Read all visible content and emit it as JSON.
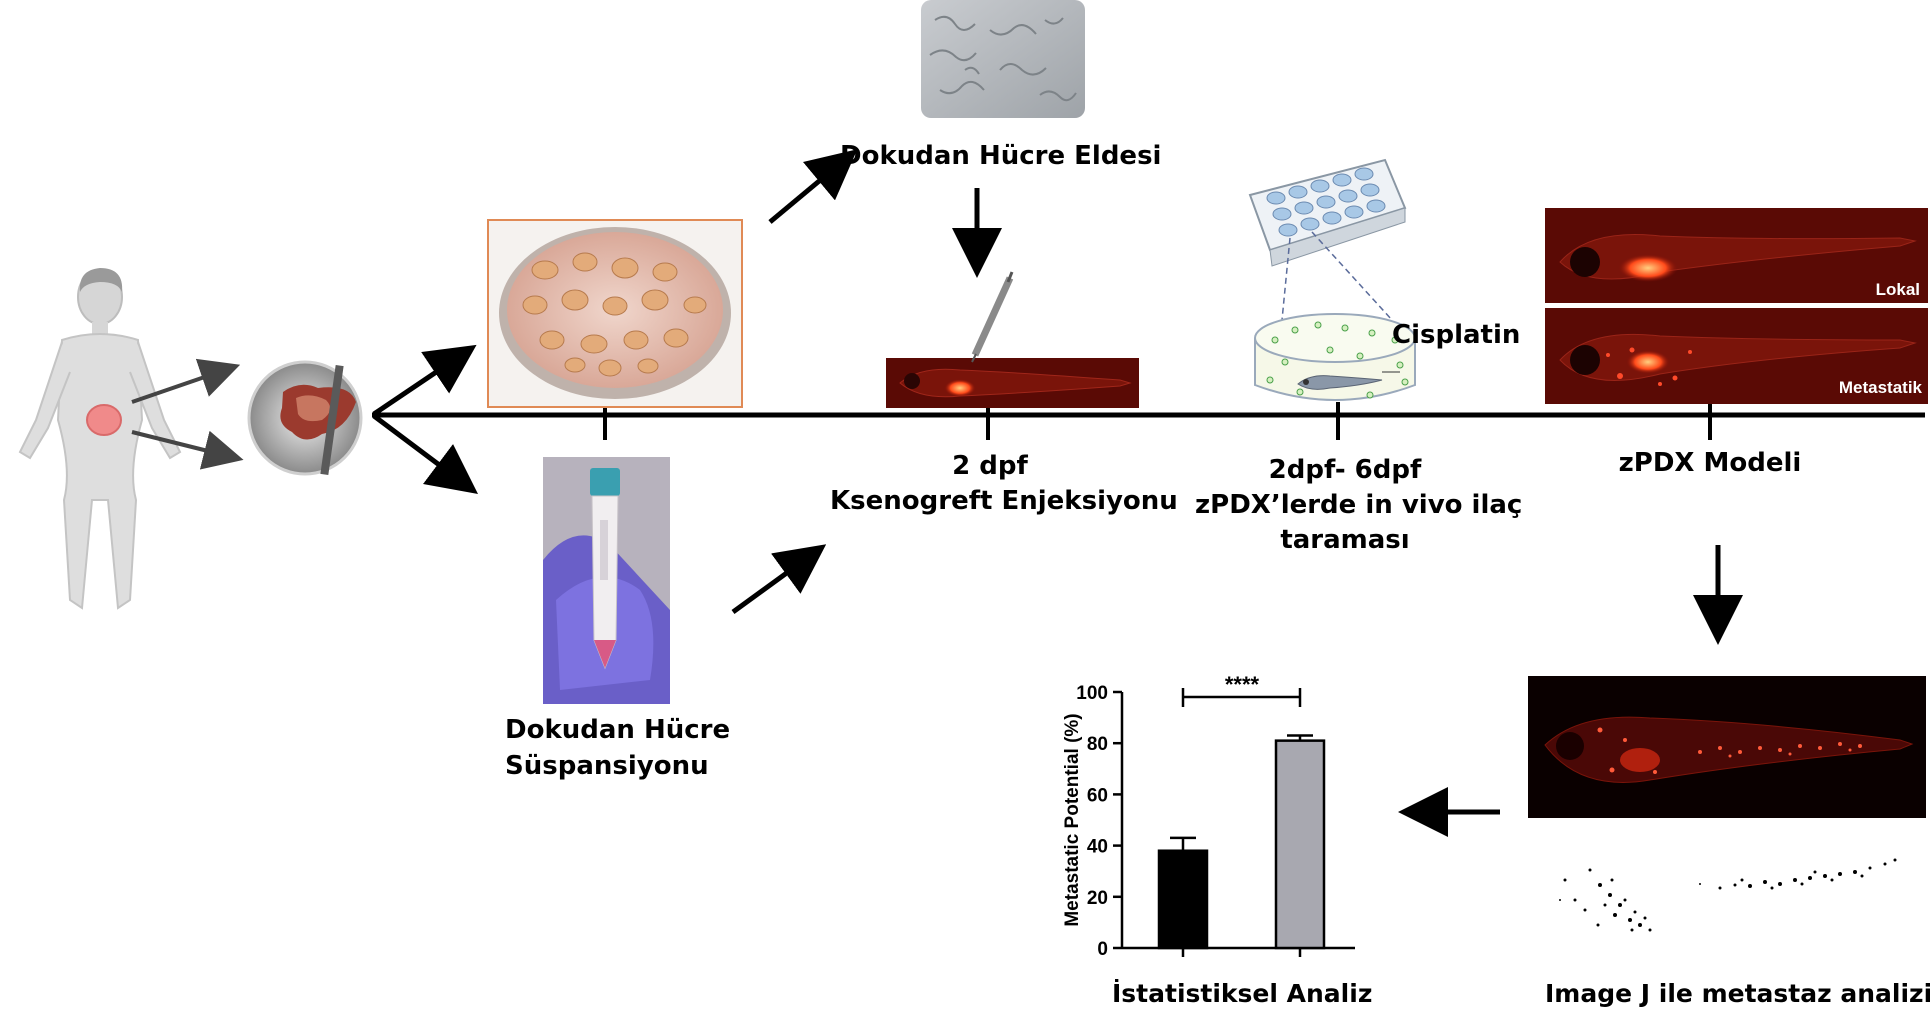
{
  "labels": {
    "cell_isolation": "Dokudan Hücre Eldesi",
    "cell_suspension_line1": "Dokudan Hücre",
    "cell_suspension_line2": "Süspansiyonu",
    "injection_day": "2 dpf",
    "injection": "Ksenogreft Enjeksiyonu",
    "screening_days": "2dpf- 6dpf",
    "screening_line1": "zPDX’lerde in vivo ilaç",
    "screening_line2": "taraması",
    "drug": "Cisplatin",
    "model": "zPDX Modeli",
    "local": "Lokal",
    "metastatic": "Metastatik",
    "image_analysis": "Image J ile metastaz analizi",
    "stat_analysis": "İstatistiksel Analiz"
  },
  "colors": {
    "fluorescence_background": "#5a0a05",
    "tumor_red": "#ff3a1a",
    "bar_control": "#000000",
    "bar_treated": "#a8a8b0",
    "skin": "#d9d9d9",
    "tumor_organ": "#f08a8a"
  },
  "chart_data": {
    "type": "bar",
    "categories": [
      "",
      ""
    ],
    "values": [
      38,
      81
    ],
    "errors": [
      5,
      2
    ],
    "ylabel": "Metastatic Potential (%)",
    "ylim": [
      0,
      100
    ],
    "yticks": [
      0,
      20,
      40,
      60,
      80,
      100
    ],
    "significance": "****"
  }
}
